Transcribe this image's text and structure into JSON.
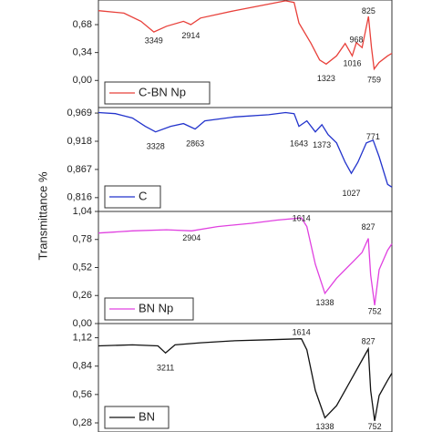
{
  "ylabel": "Transmittance %",
  "chart_data": [
    {
      "type": "line",
      "legend": "bottom-left",
      "x": [
        4000,
        3700,
        3500,
        3349,
        3200,
        3000,
        2914,
        2800,
        2400,
        2000,
        1800,
        1700,
        1643,
        1500,
        1400,
        1323,
        1200,
        1100,
        1016,
        968,
        900,
        825,
        790,
        759,
        700,
        600,
        550
      ],
      "xlim": [
        4000,
        550
      ],
      "series": [
        {
          "name": "C-BN Np",
          "color": "#e8403a",
          "values": [
            0.85,
            0.82,
            0.72,
            0.59,
            0.66,
            0.72,
            0.68,
            0.76,
            0.85,
            0.93,
            0.97,
            0.95,
            0.7,
            0.45,
            0.25,
            0.2,
            0.3,
            0.45,
            0.3,
            0.46,
            0.4,
            0.78,
            0.4,
            0.14,
            0.22,
            0.3,
            0.33
          ]
        }
      ],
      "ylim": [
        -0.33,
        0.98
      ],
      "yticks": [
        {
          "value": 0.0,
          "label": "0,00"
        },
        {
          "value": 0.34,
          "label": "0,34"
        },
        {
          "value": 0.68,
          "label": "0,68"
        }
      ],
      "annotations": [
        {
          "text": "3349",
          "x": 3349,
          "y": 0.48
        },
        {
          "text": "2914",
          "x": 2914,
          "y": 0.54
        },
        {
          "text": "1323",
          "x": 1323,
          "y": 0.02
        },
        {
          "text": "968",
          "x": 968,
          "y": 0.49
        },
        {
          "text": "1016",
          "x": 1016,
          "y": 0.2
        },
        {
          "text": "825",
          "x": 825,
          "y": 0.84
        },
        {
          "text": "759",
          "x": 759,
          "y": 0.0
        }
      ]
    },
    {
      "type": "line",
      "legend": "bottom-left",
      "x": [
        4000,
        3800,
        3600,
        3450,
        3328,
        3150,
        3000,
        2863,
        2750,
        2400,
        2000,
        1800,
        1700,
        1643,
        1550,
        1450,
        1373,
        1300,
        1200,
        1100,
        1027,
        950,
        850,
        771,
        700,
        600,
        550
      ],
      "xlim": [
        4000,
        550
      ],
      "series": [
        {
          "name": "C",
          "color": "#2233cc",
          "values": [
            0.97,
            0.968,
            0.96,
            0.945,
            0.935,
            0.945,
            0.95,
            0.94,
            0.955,
            0.962,
            0.966,
            0.97,
            0.968,
            0.945,
            0.955,
            0.935,
            0.948,
            0.93,
            0.915,
            0.88,
            0.86,
            0.88,
            0.915,
            0.92,
            0.89,
            0.84,
            0.835
          ]
        }
      ],
      "ylim": [
        0.791,
        0.979
      ],
      "yticks": [
        {
          "value": 0.816,
          "label": "0,816"
        },
        {
          "value": 0.867,
          "label": "0,867"
        },
        {
          "value": 0.918,
          "label": "0,918"
        },
        {
          "value": 0.969,
          "label": "0,969"
        }
      ],
      "annotations": [
        {
          "text": "3328",
          "x": 3328,
          "y": 0.908
        },
        {
          "text": "2863",
          "x": 2863,
          "y": 0.913
        },
        {
          "text": "1643",
          "x": 1643,
          "y": 0.913
        },
        {
          "text": "1373",
          "x": 1373,
          "y": 0.91
        },
        {
          "text": "1027",
          "x": 1027,
          "y": 0.823
        },
        {
          "text": "771",
          "x": 771,
          "y": 0.925
        }
      ]
    },
    {
      "type": "line",
      "legend": "bottom-left",
      "x": [
        4000,
        3600,
        3200,
        2904,
        2600,
        2200,
        1900,
        1614,
        1550,
        1450,
        1338,
        1200,
        1000,
        900,
        827,
        800,
        752,
        700,
        600,
        550
      ],
      "xlim": [
        4000,
        550
      ],
      "series": [
        {
          "name": "BN Np",
          "color": "#e040e0",
          "values": [
            0.84,
            0.86,
            0.87,
            0.86,
            0.9,
            0.93,
            0.96,
            0.98,
            0.9,
            0.55,
            0.28,
            0.42,
            0.58,
            0.66,
            0.79,
            0.45,
            0.17,
            0.5,
            0.68,
            0.74
          ]
        }
      ],
      "ylim": [
        0.0,
        1.04
      ],
      "yticks": [
        {
          "value": 0.0,
          "label": "0,00"
        },
        {
          "value": 0.26,
          "label": "0,26"
        },
        {
          "value": 0.52,
          "label": "0,52"
        },
        {
          "value": 0.78,
          "label": "0,78"
        },
        {
          "value": 1.04,
          "label": "1,04"
        }
      ],
      "annotations": [
        {
          "text": "1614",
          "x": 1614,
          "y": 0.97
        },
        {
          "text": "2904",
          "x": 2904,
          "y": 0.79
        },
        {
          "text": "827",
          "x": 827,
          "y": 0.89
        },
        {
          "text": "1338",
          "x": 1338,
          "y": 0.19
        },
        {
          "text": "752",
          "x": 752,
          "y": 0.11
        }
      ]
    },
    {
      "type": "line",
      "legend": "bottom-left",
      "x": [
        4000,
        3600,
        3300,
        3211,
        3100,
        2800,
        2400,
        2000,
        1614,
        1550,
        1450,
        1338,
        1200,
        1000,
        900,
        827,
        800,
        752,
        700,
        600,
        550
      ],
      "xlim": [
        4000,
        550
      ],
      "series": [
        {
          "name": "BN",
          "color": "#111111",
          "values": [
            1.04,
            1.05,
            1.04,
            0.97,
            1.05,
            1.07,
            1.09,
            1.1,
            1.11,
            1.0,
            0.6,
            0.33,
            0.45,
            0.75,
            0.9,
            1.01,
            0.6,
            0.3,
            0.55,
            0.7,
            0.77
          ]
        }
      ],
      "ylim": [
        0.19,
        1.26
      ],
      "yticks": [
        {
          "value": 0.28,
          "label": "0,28"
        },
        {
          "value": 0.56,
          "label": "0,56"
        },
        {
          "value": 0.84,
          "label": "0,84"
        },
        {
          "value": 1.12,
          "label": "1,12"
        }
      ],
      "annotations": [
        {
          "text": "1614",
          "x": 1614,
          "y": 1.17
        },
        {
          "text": "3211",
          "x": 3211,
          "y": 0.82
        },
        {
          "text": "827",
          "x": 827,
          "y": 1.08
        },
        {
          "text": "1338",
          "x": 1338,
          "y": 0.24
        },
        {
          "text": "752",
          "x": 752,
          "y": 0.24
        }
      ]
    }
  ]
}
